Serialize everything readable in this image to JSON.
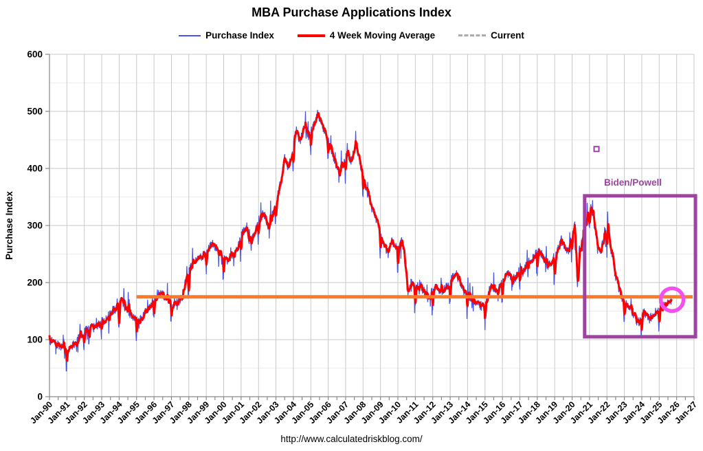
{
  "page": {
    "background": "#ffffff",
    "footer_url": "http://www.calculatedriskblog.com/"
  },
  "chart_data": {
    "type": "line",
    "title": "MBA Purchase Applications Index",
    "ylabel": "Purchase Index",
    "ylim": [
      0,
      600
    ],
    "y_major_step": 100,
    "y_minor_step": 50,
    "x_range_years": [
      1990,
      2027
    ],
    "grid": "on",
    "legend_position": "top-center",
    "legend": [
      {
        "label": "Purchase Index",
        "color": "#4653e4",
        "style": "thin"
      },
      {
        "label": "4 Week Moving Average",
        "color": "#ff0000",
        "style": "thick"
      },
      {
        "label": "Current",
        "color": "#ababab",
        "style": "dashed"
      }
    ],
    "y_tick_labels": [
      "0",
      "100",
      "200",
      "300",
      "400",
      "500",
      "600"
    ],
    "x_tick_labels": [
      "Jan-90",
      "Jan-91",
      "Jan-92",
      "Jan-93",
      "Jan-94",
      "Jan-95",
      "Jan-96",
      "Jan-97",
      "Jan-98",
      "Jan-99",
      "Jan-00",
      "Jan-01",
      "Jan-02",
      "Jan-03",
      "Jan-04",
      "Jan-05",
      "Jan-06",
      "Jan-07",
      "Jan-08",
      "Jan-09",
      "Jan-10",
      "Jan-11",
      "Jan-12",
      "Jan-13",
      "Jan-14",
      "Jan-15",
      "Jan-16",
      "Jan-17",
      "Jan-18",
      "Jan-19",
      "Jan-20",
      "Jan-21",
      "Jan-22",
      "Jan-23",
      "Jan-24",
      "Jan-25",
      "Jan-26",
      "Jan-27"
    ],
    "ma_anchors": [
      [
        1990.0,
        100
      ],
      [
        1990.4,
        92
      ],
      [
        1990.8,
        85
      ],
      [
        1991.05,
        78
      ],
      [
        1991.3,
        88
      ],
      [
        1991.6,
        100
      ],
      [
        1992.0,
        112
      ],
      [
        1992.35,
        124
      ],
      [
        1992.6,
        120
      ],
      [
        1993.0,
        131
      ],
      [
        1993.5,
        145
      ],
      [
        1993.8,
        155
      ],
      [
        1994.1,
        168
      ],
      [
        1994.5,
        150
      ],
      [
        1994.8,
        140
      ],
      [
        1995.1,
        131
      ],
      [
        1995.4,
        142
      ],
      [
        1995.7,
        158
      ],
      [
        1996.0,
        168
      ],
      [
        1996.3,
        181
      ],
      [
        1996.6,
        176
      ],
      [
        1996.85,
        171
      ],
      [
        1997.1,
        158
      ],
      [
        1997.35,
        168
      ],
      [
        1997.6,
        173
      ],
      [
        1997.8,
        200
      ],
      [
        1998.05,
        222
      ],
      [
        1998.35,
        240
      ],
      [
        1998.7,
        243
      ],
      [
        1999.0,
        252
      ],
      [
        1999.35,
        268
      ],
      [
        1999.6,
        262
      ],
      [
        1999.85,
        252
      ],
      [
        2000.2,
        240
      ],
      [
        2000.5,
        247
      ],
      [
        2000.8,
        258
      ],
      [
        2001.05,
        285
      ],
      [
        2001.25,
        296
      ],
      [
        2001.5,
        272
      ],
      [
        2001.75,
        280
      ],
      [
        2002.0,
        310
      ],
      [
        2002.3,
        322
      ],
      [
        2002.55,
        300
      ],
      [
        2002.8,
        318
      ],
      [
        2003.0,
        337
      ],
      [
        2003.25,
        372
      ],
      [
        2003.5,
        420
      ],
      [
        2003.7,
        398
      ],
      [
        2003.95,
        430
      ],
      [
        2004.15,
        468
      ],
      [
        2004.4,
        447
      ],
      [
        2004.65,
        478
      ],
      [
        2004.85,
        456
      ],
      [
        2005.1,
        470
      ],
      [
        2005.4,
        496
      ],
      [
        2005.6,
        480
      ],
      [
        2005.85,
        462
      ],
      [
        2006.1,
        440
      ],
      [
        2006.35,
        415
      ],
      [
        2006.6,
        396
      ],
      [
        2006.85,
        405
      ],
      [
        2007.1,
        430
      ],
      [
        2007.3,
        414
      ],
      [
        2007.55,
        440
      ],
      [
        2007.8,
        416
      ],
      [
        2008.0,
        386
      ],
      [
        2008.2,
        362
      ],
      [
        2008.4,
        338
      ],
      [
        2008.6,
        322
      ],
      [
        2008.8,
        310
      ],
      [
        2009.0,
        282
      ],
      [
        2009.2,
        263
      ],
      [
        2009.45,
        256
      ],
      [
        2009.65,
        275
      ],
      [
        2009.85,
        262
      ],
      [
        2010.05,
        258
      ],
      [
        2010.25,
        274
      ],
      [
        2010.4,
        238
      ],
      [
        2010.55,
        182
      ],
      [
        2010.75,
        200
      ],
      [
        2011.0,
        188
      ],
      [
        2011.25,
        197
      ],
      [
        2011.5,
        185
      ],
      [
        2011.75,
        172
      ],
      [
        2012.0,
        185
      ],
      [
        2012.25,
        192
      ],
      [
        2012.5,
        183
      ],
      [
        2012.75,
        190
      ],
      [
        2013.0,
        202
      ],
      [
        2013.3,
        217
      ],
      [
        2013.55,
        204
      ],
      [
        2013.8,
        183
      ],
      [
        2014.05,
        176
      ],
      [
        2014.35,
        167
      ],
      [
        2014.65,
        162
      ],
      [
        2014.9,
        157
      ],
      [
        2015.1,
        168
      ],
      [
        2015.3,
        193
      ],
      [
        2015.55,
        184
      ],
      [
        2015.8,
        190
      ],
      [
        2016.1,
        208
      ],
      [
        2016.35,
        216
      ],
      [
        2016.6,
        205
      ],
      [
        2016.85,
        211
      ],
      [
        2017.0,
        228
      ],
      [
        2017.15,
        217
      ],
      [
        2017.4,
        232
      ],
      [
        2017.6,
        238
      ],
      [
        2017.8,
        244
      ],
      [
        2018.05,
        254
      ],
      [
        2018.3,
        248
      ],
      [
        2018.6,
        229
      ],
      [
        2018.8,
        236
      ],
      [
        2019.0,
        246
      ],
      [
        2019.2,
        260
      ],
      [
        2019.4,
        272
      ],
      [
        2019.6,
        257
      ],
      [
        2019.8,
        253
      ],
      [
        2020.0,
        282
      ],
      [
        2020.15,
        305
      ],
      [
        2020.3,
        192
      ],
      [
        2020.45,
        250
      ],
      [
        2020.6,
        285
      ],
      [
        2020.8,
        302
      ],
      [
        2020.95,
        325
      ],
      [
        2021.07,
        336
      ],
      [
        2021.25,
        305
      ],
      [
        2021.5,
        261
      ],
      [
        2021.65,
        252
      ],
      [
        2021.9,
        295
      ],
      [
        2022.05,
        293
      ],
      [
        2022.4,
        225
      ],
      [
        2022.6,
        198
      ],
      [
        2022.87,
        173
      ],
      [
        2023.1,
        163
      ],
      [
        2023.3,
        157
      ],
      [
        2023.5,
        147
      ],
      [
        2023.7,
        133
      ],
      [
        2023.9,
        131
      ],
      [
        2024.1,
        148
      ],
      [
        2024.4,
        139
      ],
      [
        2024.7,
        141
      ],
      [
        2024.9,
        146
      ],
      [
        2025.1,
        157
      ],
      [
        2025.35,
        160
      ],
      [
        2025.55,
        164
      ],
      [
        2025.72,
        170
      ]
    ],
    "reference_line": {
      "value": 175,
      "x_start": 1995.0,
      "x_end": 2026.92,
      "color": "#f97b28"
    },
    "annotations": {
      "box": {
        "x1": 2020.72,
        "x2": 2027.08,
        "y1": 105,
        "y2": 352,
        "color": "#9c44a0",
        "label": "Biden/Powell"
      },
      "circle": {
        "x": 2025.74,
        "y": 170,
        "radius_px": 16.5,
        "color": "#f251f0"
      },
      "square_marker": {
        "x": 2021.4,
        "y": 434,
        "color": "#9c44a0"
      }
    },
    "current_value": 170
  }
}
